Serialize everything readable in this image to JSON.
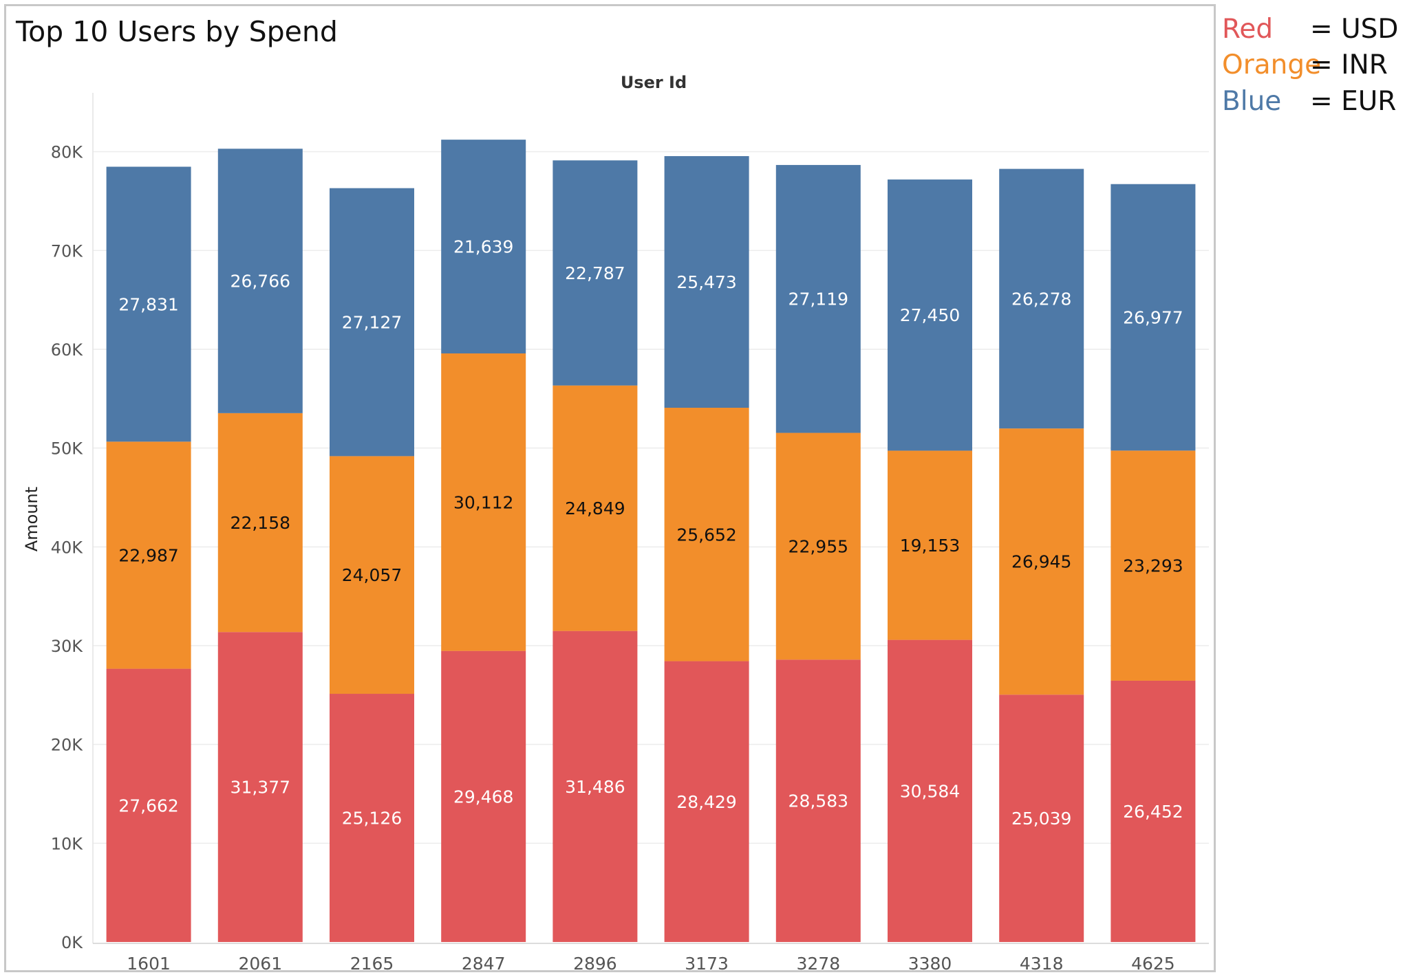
{
  "chart_data": {
    "type": "bar",
    "stacked": true,
    "title": "Top 10 Users by Spend",
    "top_axis_label": "User Id",
    "ylabel": "Amount",
    "ylim": [
      0,
      86000
    ],
    "yticks": [
      0,
      10000,
      20000,
      30000,
      40000,
      50000,
      60000,
      70000,
      80000
    ],
    "ytick_labels": [
      "0K",
      "10K",
      "20K",
      "30K",
      "40K",
      "50K",
      "60K",
      "70K",
      "80K"
    ],
    "grid": true,
    "categories": [
      "1601",
      "2061",
      "2165",
      "2847",
      "2896",
      "3173",
      "3278",
      "3380",
      "4318",
      "4625"
    ],
    "series": [
      {
        "key": "usd",
        "color": "#e15759",
        "label_color": "#ffffff",
        "values": [
          27662,
          31377,
          25126,
          29468,
          31486,
          28429,
          28583,
          30584,
          25039,
          26452
        ],
        "labels": [
          "27,662",
          "31,377",
          "25,126",
          "29,468",
          "31,486",
          "28,429",
          "28,583",
          "30,584",
          "25,039",
          "26,452"
        ]
      },
      {
        "key": "inr",
        "color": "#f28e2b",
        "label_color": "#111111",
        "values": [
          22987,
          22158,
          24057,
          30112,
          24849,
          25652,
          22955,
          19153,
          26945,
          23293
        ],
        "labels": [
          "22,987",
          "22,158",
          "24,057",
          "30,112",
          "24,849",
          "25,652",
          "22,955",
          "19,153",
          "26,945",
          "23,293"
        ]
      },
      {
        "key": "eur",
        "color": "#4e79a7",
        "label_color": "#ffffff",
        "values": [
          27831,
          26766,
          27127,
          21639,
          22787,
          25473,
          27119,
          27450,
          26278,
          26977
        ],
        "labels": [
          "27,831",
          "26,766",
          "27,127",
          "21,639",
          "22,787",
          "25,473",
          "27,119",
          "27,450",
          "26,278",
          "26,977"
        ]
      }
    ]
  },
  "legend": [
    {
      "name": "Red",
      "eq": "=  USD",
      "color": "#e15759"
    },
    {
      "name": "Orange",
      "eq": "= INR",
      "color": "#f28e2b"
    },
    {
      "name": "Blue",
      "eq": "=  EUR",
      "color": "#4e79a7"
    }
  ]
}
